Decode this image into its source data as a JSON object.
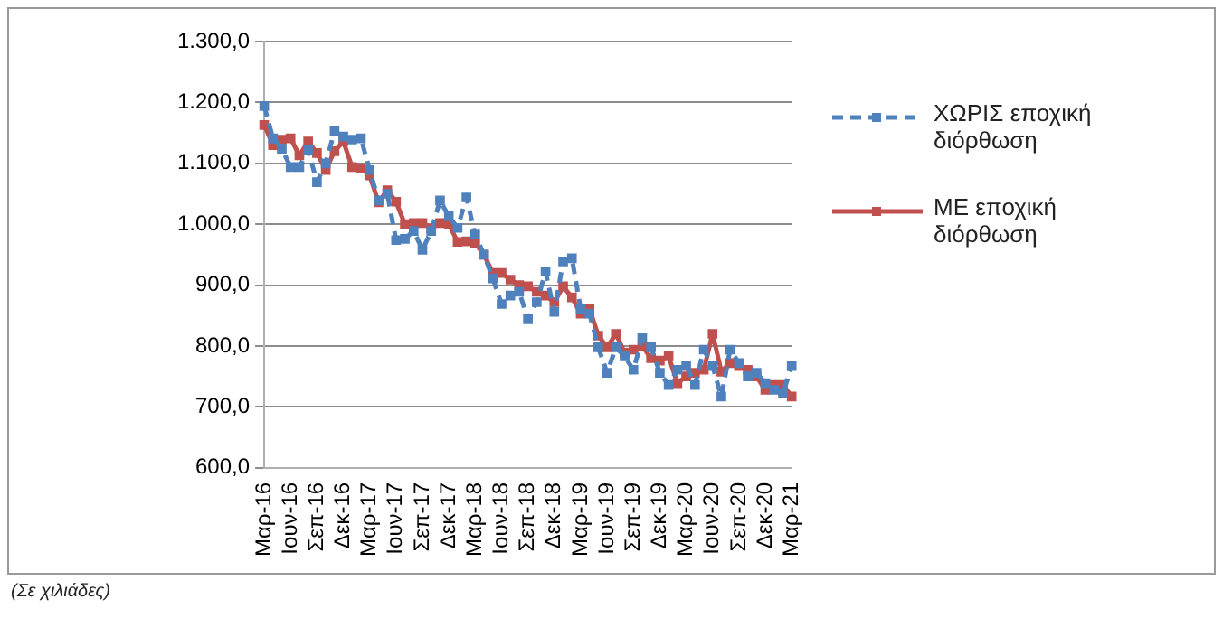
{
  "chart_data": {
    "type": "line",
    "categories": [
      "Μαρ-16",
      null,
      null,
      "Ιουν-16",
      null,
      null,
      "Σεπ-16",
      null,
      null,
      "Δεκ-16",
      null,
      null,
      "Μαρ-17",
      null,
      null,
      "Ιουν-17",
      null,
      null,
      "Σεπ-17",
      null,
      null,
      "Δεκ-17",
      null,
      null,
      "Μαρ-18",
      null,
      null,
      "Ιουν-18",
      null,
      null,
      "Σεπ-18",
      null,
      null,
      "Δεκ-18",
      null,
      null,
      "Μαρ-19",
      null,
      null,
      "Ιουν-19",
      null,
      null,
      "Σεπ-19",
      null,
      null,
      "Δεκ-19",
      null,
      null,
      "Μαρ-20",
      null,
      null,
      "Ιουν-20",
      null,
      null,
      "Σεπ-20",
      null,
      null,
      "Δεκ-20",
      null,
      null,
      "Μαρ-21"
    ],
    "series": [
      {
        "name": "ΧΩΡΙΣ εποχική διόρθωση",
        "color": "#4f81bd",
        "line_style": "dashed",
        "values": [
          1194,
          1141,
          1124,
          1094,
          1094,
          1122,
          1069,
          1100,
          1153,
          1144,
          1139,
          1141,
          1089,
          1039,
          1050,
          974,
          976,
          989,
          958,
          989,
          1039,
          1013,
          994,
          1044,
          983,
          950,
          911,
          869,
          883,
          889,
          844,
          872,
          922,
          856,
          939,
          944,
          861,
          853,
          798,
          756,
          798,
          783,
          761,
          813,
          798,
          756,
          736,
          761,
          767,
          736,
          794,
          767,
          717,
          794,
          772,
          750,
          756,
          739,
          728,
          722,
          767
        ]
      },
      {
        "name": "ΜΕ εποχική διόρθωση",
        "color": "#c0504d",
        "line_style": "solid",
        "values": [
          1163,
          1130,
          1139,
          1141,
          1113,
          1136,
          1117,
          1089,
          1120,
          1136,
          1094,
          1092,
          1080,
          1036,
          1056,
          1037,
          1000,
          1002,
          1002,
          993,
          1002,
          1000,
          971,
          972,
          969,
          950,
          920,
          920,
          909,
          900,
          898,
          889,
          883,
          872,
          898,
          880,
          853,
          861,
          817,
          798,
          820,
          789,
          794,
          800,
          780,
          776,
          783,
          739,
          750,
          756,
          761,
          820,
          758,
          772,
          767,
          761,
          750,
          728,
          736,
          736,
          717
        ]
      }
    ],
    "ylim": [
      600,
      1300
    ],
    "yticks": [
      {
        "value": 600,
        "label": "600,0"
      },
      {
        "value": 700,
        "label": "700,0"
      },
      {
        "value": 800,
        "label": "800,0"
      },
      {
        "value": 900,
        "label": "900,0"
      },
      {
        "value": 1000,
        "label": "1.000,0"
      },
      {
        "value": 1100,
        "label": "1.100,0"
      },
      {
        "value": 1200,
        "label": "1.200,0"
      },
      {
        "value": 1300,
        "label": "1.300,0"
      }
    ],
    "grid": "y",
    "legend": "right",
    "marker": "square",
    "annotations": [
      "(Σε χιλιάδες)"
    ]
  }
}
